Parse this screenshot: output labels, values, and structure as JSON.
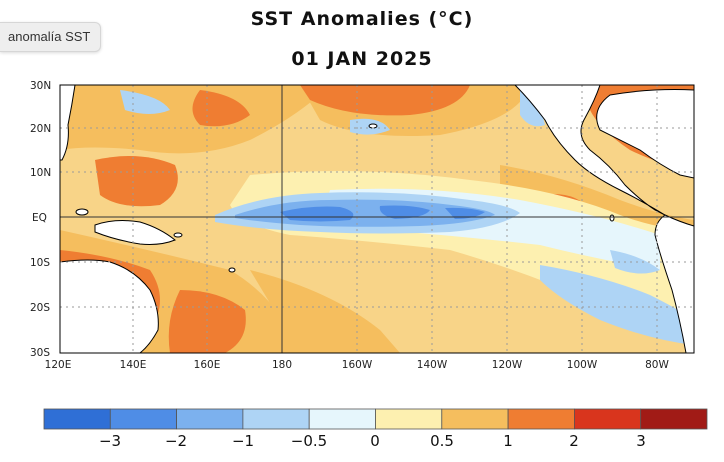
{
  "chip": {
    "label": "anomalía SST"
  },
  "header": {
    "title": "SST Anomalies (°C)",
    "date": "01 JAN 2025"
  },
  "map": {
    "lat_labels": [
      "30N",
      "20N",
      "10N",
      "EQ",
      "10S",
      "20S",
      "30S"
    ],
    "lon_labels": [
      "120E",
      "140E",
      "160E",
      "180",
      "160W",
      "140W",
      "120W",
      "100W",
      "80W"
    ],
    "land_color": "#ffffff",
    "coast_color": "#000000"
  },
  "colorbar": {
    "colors": [
      "#2f6fd6",
      "#4f8de6",
      "#7cb1ee",
      "#aed4f5",
      "#e6f6fc",
      "#fdf0b0",
      "#f5be5e",
      "#ef7d32",
      "#d9351d",
      "#a11b16"
    ],
    "tick_labels": [
      "−3",
      "−2",
      "−1",
      "−0.5",
      "0",
      "0.5",
      "1",
      "2",
      "3"
    ]
  }
}
